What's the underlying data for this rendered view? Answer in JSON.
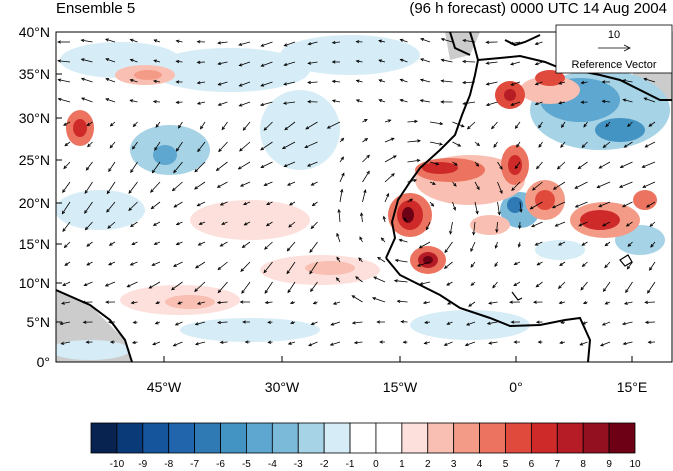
{
  "title_left": "Ensemble 5",
  "title_right": "(96 h forecast) 0000 UTC 14 Aug 2004",
  "lat_ticks": [
    "40°N",
    "35°N",
    "30°N",
    "25°N",
    "20°N",
    "15°N",
    "10°N",
    "5°N",
    "0°"
  ],
  "lon_ticks": [
    "45°W",
    "30°W",
    "15°W",
    "0°",
    "15°E"
  ],
  "reference_vector": {
    "magnitude": "10",
    "label": "Reference Vector"
  },
  "colorbar": {
    "labels": [
      "-10",
      "-9",
      "-8",
      "-7",
      "-6",
      "-5",
      "-4",
      "-3",
      "-2",
      "-1",
      "0",
      "1",
      "2",
      "3",
      "4",
      "5",
      "6",
      "7",
      "8",
      "9",
      "10"
    ],
    "colors": [
      "#08234f",
      "#0b3a78",
      "#14559c",
      "#2166ac",
      "#2f79b5",
      "#4393c3",
      "#5ea7d0",
      "#7bbad9",
      "#a6d3e6",
      "#d6ecf6",
      "#ffffff",
      "#ffffff",
      "#fde0dc",
      "#f8bfb2",
      "#f39b86",
      "#eb735f",
      "#e04a3c",
      "#ce2a2a",
      "#b51c25",
      "#921020",
      "#6d0014"
    ]
  },
  "map": {
    "lon_range": [
      -58,
      20
    ],
    "lat_range": [
      0,
      40
    ],
    "land_color": "#cccccc"
  }
}
